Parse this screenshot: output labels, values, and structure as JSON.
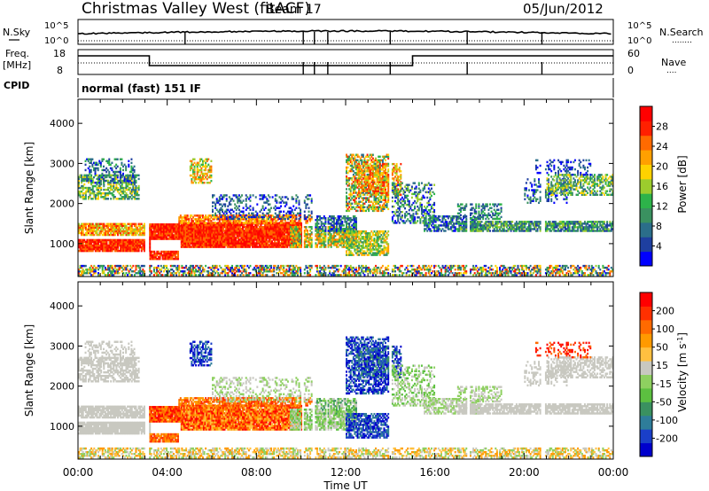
{
  "header": {
    "title": "Christmas Valley West (fitACF)",
    "beam": "Beam 17",
    "date": "05/Jun/2012"
  },
  "panels": {
    "nsky_label": "N.Sky",
    "nsearch_label": "N.Search",
    "nsearch_line": "........",
    "nsky_ticks": [
      "10^5",
      "10^0"
    ],
    "nsearch_ticks": [
      "10^5",
      "10^0"
    ],
    "freq_label": "Freq.",
    "freq_unit": "[MHz]",
    "freq_ticks": [
      "18",
      "8"
    ],
    "nave_label": "Nave",
    "nave_line": "....",
    "nave_ticks": [
      "60",
      "0"
    ],
    "cpid_label": "CPID",
    "cpid_value": "normal (fast) 151 IF"
  },
  "chart_data": [
    {
      "type": "heatmap",
      "name": "power",
      "ylabel": "Slant Range [km]",
      "xlabel": "",
      "x_ticks": [
        "00:00",
        "04:00",
        "08:00",
        "12:00",
        "16:00",
        "20:00",
        "00:00"
      ],
      "y_ticks": [
        1000,
        2000,
        3000,
        4000
      ],
      "ylim": [
        180,
        4600
      ],
      "xlim_hours": [
        0,
        24
      ],
      "colorbar": {
        "label": "Power [dB]",
        "ticks": [
          4,
          8,
          12,
          16,
          20,
          24,
          28
        ],
        "colors": [
          "#0000ff",
          "#1e3fa0",
          "#2b6e8a",
          "#3a9160",
          "#2db34a",
          "#9ccc2d",
          "#ffd200",
          "#ffa000",
          "#ff6a00",
          "#ff2000",
          "#ff0000"
        ]
      }
    },
    {
      "type": "heatmap",
      "name": "velocity",
      "ylabel": "Slant Range [km]",
      "xlabel": "Time UT",
      "x_ticks": [
        "00:00",
        "04:00",
        "08:00",
        "12:00",
        "16:00",
        "20:00",
        "00:00"
      ],
      "y_ticks": [
        1000,
        2000,
        3000,
        4000
      ],
      "ylim": [
        180,
        4600
      ],
      "xlim_hours": [
        0,
        24
      ],
      "colorbar": {
        "label": "Velocity [m s",
        "label_sup": "-1",
        "label_end": "]",
        "ticks": [
          200,
          100,
          50,
          15,
          -15,
          -50,
          -100,
          -200
        ],
        "colors": [
          "#0000cc",
          "#1a3fc8",
          "#2e7d9a",
          "#3a9160",
          "#5cc040",
          "#8ed060",
          "#c8c8c0",
          "#ffc040",
          "#ff9a00",
          "#ff6a00",
          "#ff3000",
          "#ff0000"
        ]
      }
    }
  ]
}
